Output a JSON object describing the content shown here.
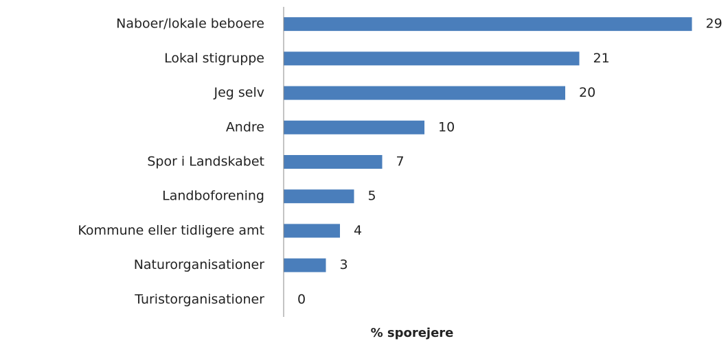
{
  "chart_data": {
    "type": "bar",
    "orientation": "horizontal",
    "x_label": "% sporejere",
    "categories": [
      "Naboer/lokale beboere",
      "Lokal stigruppe",
      "Jeg selv",
      "Andre",
      "Spor i Landskabet",
      "Landboforening",
      "Kommune eller tidligere amt",
      "Naturorganisationer",
      "Turistorganisationer"
    ],
    "values": [
      29,
      21,
      20,
      10,
      7,
      5,
      4,
      3,
      0
    ],
    "color": "#4a7ebb",
    "xlim": [
      0,
      30
    ]
  }
}
